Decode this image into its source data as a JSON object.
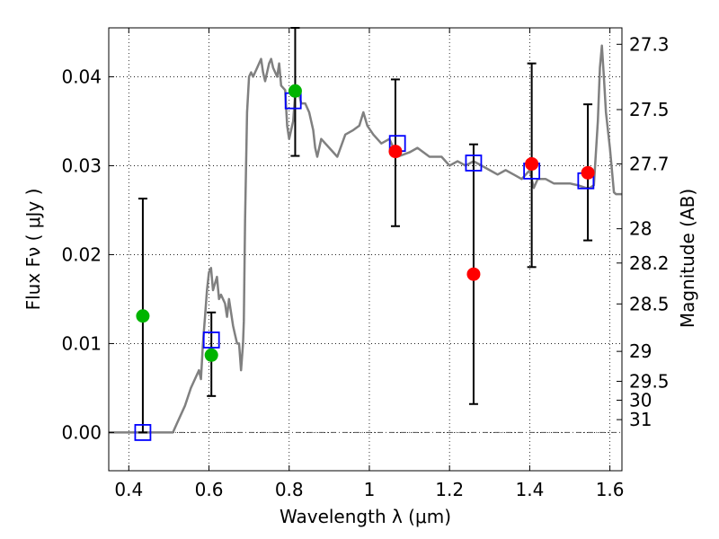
{
  "chart_data": {
    "type": "scatter",
    "xlabel": "Wavelength  λ (μm)",
    "ylabel": "Flux  Fν  ( μJy )",
    "y2label": "Magnitude (AB)",
    "xlim": [
      0.35,
      1.63
    ],
    "ylim": [
      -0.0043,
      0.0455
    ],
    "x_ticks": [
      0.4,
      0.6,
      0.8,
      1.0,
      1.2,
      1.4,
      1.6
    ],
    "x_tick_labels": [
      "0.4",
      "0.6",
      "0.8",
      "1",
      "1.2",
      "1.4",
      "1.6"
    ],
    "y_ticks": [
      0.0,
      0.01,
      0.02,
      0.03,
      0.04
    ],
    "y_tick_labels": [
      "0.00",
      "0.01",
      "0.02",
      "0.03",
      "0.04"
    ],
    "y2_ticks": [
      {
        "label": "27.3",
        "mag": 27.3
      },
      {
        "label": "27.5",
        "mag": 27.5
      },
      {
        "label": "27.7",
        "mag": 27.7
      },
      {
        "label": "28",
        "mag": 28.0
      },
      {
        "label": "28.2",
        "mag": 28.2
      },
      {
        "label": "28.5",
        "mag": 28.5
      },
      {
        "label": "29",
        "mag": 29.0
      },
      {
        "label": "29.5",
        "mag": 29.5
      },
      {
        "label": "30",
        "mag": 30.0
      },
      {
        "label": "31",
        "mag": 31.0
      }
    ],
    "grid": true,
    "colors": {
      "model_line": "#808080",
      "model_points": "#0000ff",
      "green_points": "#00b400",
      "red_points": "#ff0000",
      "error_bars": "#000000",
      "zero_line": "#555555"
    },
    "series": [
      {
        "kind": "line",
        "x": [
          0.35,
          0.38,
          0.42,
          0.46,
          0.48,
          0.51,
          0.52,
          0.54,
          0.555,
          0.565,
          0.575,
          0.58,
          0.585,
          0.59,
          0.595,
          0.6,
          0.605,
          0.61,
          0.62,
          0.625,
          0.63,
          0.64,
          0.645,
          0.65,
          0.66,
          0.665,
          0.67,
          0.675,
          0.68,
          0.685,
          0.687,
          0.69,
          0.695,
          0.7,
          0.705,
          0.71,
          0.72,
          0.73,
          0.735,
          0.74,
          0.75,
          0.755,
          0.76,
          0.77,
          0.775,
          0.78,
          0.79,
          0.795,
          0.8,
          0.81,
          0.815,
          0.82,
          0.83,
          0.84,
          0.85,
          0.86,
          0.865,
          0.87,
          0.88,
          0.9,
          0.92,
          0.94,
          0.96,
          0.975,
          0.985,
          0.995,
          1.01,
          1.03,
          1.05,
          1.07,
          1.1,
          1.12,
          1.15,
          1.18,
          1.2,
          1.22,
          1.24,
          1.26,
          1.28,
          1.3,
          1.32,
          1.34,
          1.36,
          1.38,
          1.4,
          1.41,
          1.42,
          1.44,
          1.46,
          1.48,
          1.5,
          1.52,
          1.54,
          1.55,
          1.56,
          1.57,
          1.575,
          1.58,
          1.585,
          1.59,
          1.6,
          1.61,
          1.615,
          1.63
        ],
        "y": [
          0.0,
          0.0,
          0.0,
          0.0,
          0.0,
          0.0,
          0.001,
          0.003,
          0.005,
          0.006,
          0.007,
          0.006,
          0.01,
          0.013,
          0.016,
          0.018,
          0.0185,
          0.016,
          0.0175,
          0.015,
          0.0155,
          0.0145,
          0.013,
          0.015,
          0.012,
          0.011,
          0.01,
          0.01,
          0.007,
          0.01,
          0.0125,
          0.024,
          0.036,
          0.04,
          0.0405,
          0.04,
          0.041,
          0.042,
          0.0405,
          0.0395,
          0.0415,
          0.042,
          0.041,
          0.04,
          0.0415,
          0.039,
          0.0385,
          0.0345,
          0.033,
          0.035,
          0.038,
          0.039,
          0.037,
          0.037,
          0.036,
          0.034,
          0.032,
          0.031,
          0.033,
          0.032,
          0.031,
          0.0335,
          0.034,
          0.0345,
          0.036,
          0.0345,
          0.0335,
          0.0325,
          0.033,
          0.031,
          0.0315,
          0.032,
          0.031,
          0.031,
          0.03,
          0.0305,
          0.03,
          0.0305,
          0.03,
          0.0295,
          0.029,
          0.0295,
          0.029,
          0.0285,
          0.0295,
          0.0275,
          0.0285,
          0.0285,
          0.028,
          0.028,
          0.028,
          0.0278,
          0.0275,
          0.0275,
          0.0278,
          0.035,
          0.041,
          0.0435,
          0.04,
          0.036,
          0.032,
          0.027,
          0.0268,
          0.0268
        ]
      },
      {
        "kind": "open_squares",
        "x": [
          0.435,
          0.606,
          0.81,
          1.07,
          1.26,
          1.405,
          1.54
        ],
        "y": [
          0.0,
          0.0104,
          0.0373,
          0.0325,
          0.0303,
          0.0294,
          0.0283
        ]
      },
      {
        "kind": "green_points",
        "x": [
          0.435,
          0.606,
          0.815
        ],
        "y": [
          0.0131,
          0.0087,
          0.0384
        ],
        "yerr_low": [
          0.0,
          0.0041,
          0.0311
        ],
        "yerr_high": [
          0.0263,
          0.0135,
          0.0455
        ]
      },
      {
        "kind": "red_points",
        "x": [
          1.065,
          1.26,
          1.405,
          1.545
        ],
        "y": [
          0.0316,
          0.0178,
          0.0302,
          0.0292
        ],
        "yerr_low": [
          0.0232,
          0.0032,
          0.0186,
          0.0216
        ],
        "yerr_high": [
          0.0397,
          0.0324,
          0.0415,
          0.0369
        ]
      }
    ]
  }
}
